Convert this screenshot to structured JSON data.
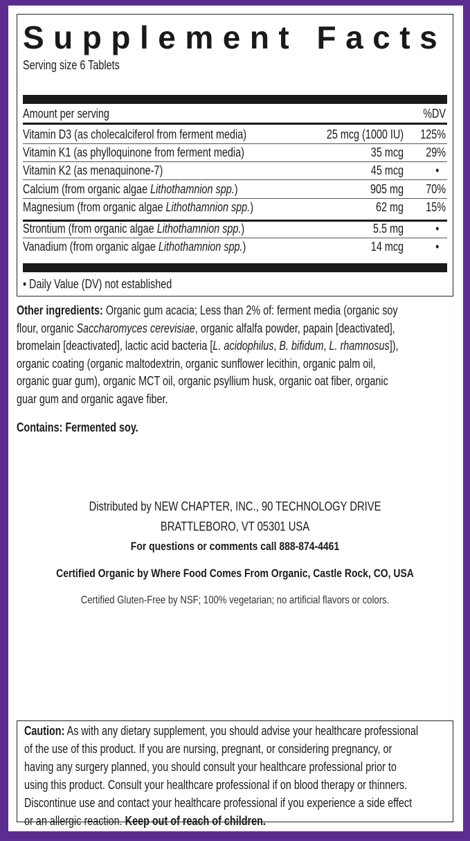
{
  "colors": {
    "border": "#5b2d91",
    "text": "#1a1a1a"
  },
  "facts": {
    "title": "Supplement Facts",
    "serving_size": "Serving size 6 Tablets",
    "header_amount": "Amount per serving",
    "header_dv": "%DV",
    "rows": [
      {
        "name": "Vitamin D3",
        "desc": [
          {
            "t": " (as cholecalciferol from ferment media)"
          }
        ],
        "amount": "25 mcg (1000 IU)",
        "dv": "125%"
      },
      {
        "name": "Vitamin K1",
        "desc": [
          {
            "t": " (as phylloquinone from ferment media)"
          }
        ],
        "amount": "35 mcg",
        "dv": "29%"
      },
      {
        "name": "Vitamin K2",
        "desc": [
          {
            "t": " (as menaquinone-7)"
          }
        ],
        "amount": "45 mcg",
        "dv": "•"
      },
      {
        "name": "Calcium",
        "desc": [
          {
            "t": " (from organic algae "
          },
          {
            "t": "Lithothamnion spp.",
            "i": true
          },
          {
            "t": ")"
          }
        ],
        "amount": "905 mg",
        "dv": "70%"
      },
      {
        "name": "Magnesium",
        "desc": [
          {
            "t": " (from organic algae "
          },
          {
            "t": "Lithothamnion spp.",
            "i": true
          },
          {
            "t": ")"
          }
        ],
        "amount": "62 mg",
        "dv": "15%"
      },
      {
        "name": "Strontium",
        "desc": [
          {
            "t": " (from organic algae "
          },
          {
            "t": "Lithothamnion spp.",
            "i": true
          },
          {
            "t": ")"
          }
        ],
        "amount": "5.5 mg",
        "dv": "•"
      },
      {
        "name": "Vanadium",
        "desc": [
          {
            "t": " (from organic algae "
          },
          {
            "t": "Lithothamnion spp.",
            "i": true
          },
          {
            "t": ")"
          }
        ],
        "amount": "14 mcg",
        "dv": "•"
      }
    ],
    "footnote": "• Daily Value (DV) not established"
  },
  "ingredients": {
    "lines": [
      [
        {
          "t": "Other ingredients:",
          "b": true
        },
        {
          "t": " Organic gum acacia; Less than 2% of: ferment media (organic soy"
        }
      ],
      [
        {
          "t": "flour, organic "
        },
        {
          "t": "Saccharomyces cerevisiae",
          "i": true
        },
        {
          "t": ", organic alfalfa powder, papain [deactivated],"
        }
      ],
      [
        {
          "t": "bromelain [deactivated], lactic acid bacteria ["
        },
        {
          "t": "L. acidophilus",
          "i": true
        },
        {
          "t": ", "
        },
        {
          "t": "B. bifidum",
          "i": true
        },
        {
          "t": ", "
        },
        {
          "t": "L. rhamnosus",
          "i": true
        },
        {
          "t": "]),"
        }
      ],
      [
        {
          "t": "organic coating (organic maltodextrin, organic sunflower lecithin, organic palm oil,"
        }
      ],
      [
        {
          "t": "organic guar gum), organic MCT oil, organic psyllium husk, organic oat fiber, organic"
        }
      ],
      [
        {
          "t": "guar gum and organic agave fiber."
        }
      ]
    ],
    "contains": "Contains: Fermented soy."
  },
  "distributor": {
    "line1": "Distributed by NEW CHAPTER, INC., 90 TECHNOLOGY DRIVE",
    "line2": "BRATTLEBORO, VT 05301 USA",
    "line3": "For questions or comments call 888-874-4461",
    "certified_organic": "Certified Organic by Where Food Comes From Organic, Castle Rock, CO, USA",
    "gluten_free": "Certified Gluten-Free by NSF; 100% vegetarian; no artificial flavors or colors."
  },
  "caution": {
    "lines": [
      [
        {
          "t": "Caution:",
          "b": true
        },
        {
          "t": " As with any dietary supplement, you should advise your healthcare professional"
        }
      ],
      [
        {
          "t": "of the use of this product. If you are nursing, pregnant, or considering pregnancy, or"
        }
      ],
      [
        {
          "t": "having any surgery planned, you should consult your healthcare professional prior to"
        }
      ],
      [
        {
          "t": "using this product. Consult your healthcare professional if on blood therapy or thinners."
        }
      ],
      [
        {
          "t": "Discontinue use and contact your healthcare professional if you experience a side effect"
        }
      ],
      [
        {
          "t": "or an allergic reaction. "
        },
        {
          "t": "Keep out of reach of children.",
          "b": true
        }
      ]
    ]
  }
}
